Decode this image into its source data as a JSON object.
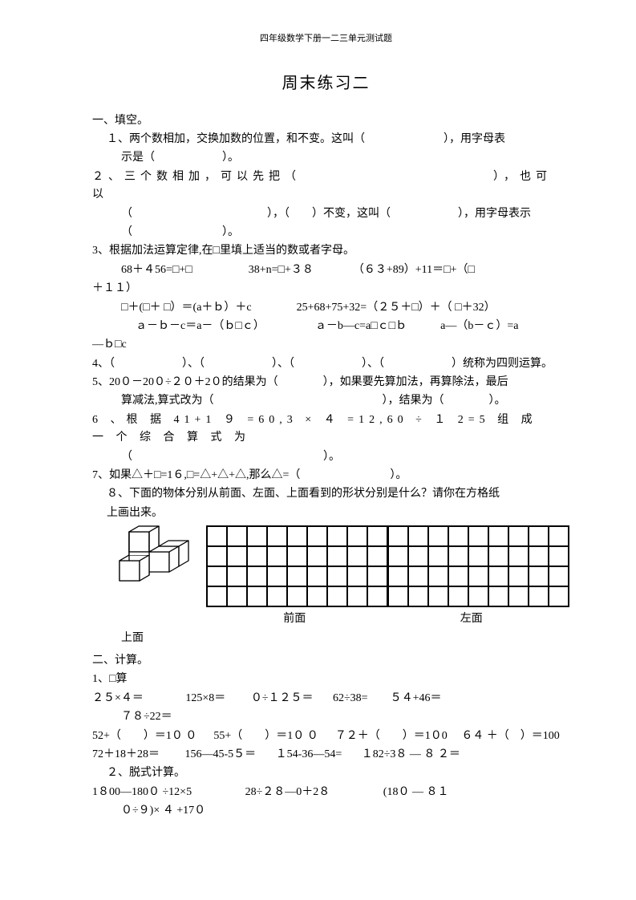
{
  "header": "四年级数学下册一二三单元测试题",
  "title": "周末练习二",
  "s1": {
    "head": "一、填空。",
    "q1a": "１、两个数相加，交换加数的位置，和不变。这叫（　　　　　　　），用字母表",
    "q1b": "示是（　　　　　　）。",
    "q2a": "２、三个数相加，可以先把（　　　　　　　　　　　　），也可以",
    "q2b": "（　　　　　　　　　　　　），（　　）不变，这叫（　　　　　　），用字母表示",
    "q2c": "（　　　　　　　　）。",
    "q3a": "3、根据加法运算定律,在□里填上适当的数或者字母。",
    "q3b": "68＋４56=□+□　　　　　38+n=□+３８　　　　（６３+89）+11＝□+（□",
    "q3c": "＋１１）",
    "q3d": "□＋(□＋ □）＝(a＋ｂ）＋c　　　　25+68+75+32=（２５＋□）＋（ □＋32）",
    "q3e": "ａ－ｂ－c＝a－（ｂ□ｃ）　　　　　ａ－b―c=a□ｃ□ｂ　　　a―（b－ｃ）=a",
    "q3f": "―ｂ□c",
    "q4": "4、（　　　　　　）、（　　　　　　）、（　　　　　　）、（　　　　　　）统称为四则运算。",
    "q5a": "5、20０－20０÷２０＋2０的结果为（　　　　），如果要先算加法，再算除法，最后",
    "q5b": "算减法,算式改为（　　　　　　　　　　　　　　　），结果为（　　　　）。",
    "q6a": "6 、根 据 41+1 ９ =60,3 × ４ =12,60 ÷ １ 2=5 组 成 一 个 综 合 算 式 为",
    "q6b": "（　　　　　　　　　　　　　　　　　）。",
    "q7": "7、如果△＋□=1６,□=△+△+△,那么△=（　　　　　　　　）。",
    "q8a": "８、下面的物体分别从前面、左面、上面看到的形状分别是什么？请你在方格纸",
    "q8b": "上画出来。",
    "gridLabelFront": "前面",
    "gridLabelLeft": "左面",
    "q8c": "上面"
  },
  "s2": {
    "head": "二、计算。",
    "q1head": "1、□算",
    "r1a": "２５×４＝",
    "r1b": "125×8＝",
    "r1c": "０÷１２５＝",
    "r1d": "62÷38=",
    "r1e": "５４+46＝",
    "r1f": "７８÷22＝",
    "r2a": "52+（　　）＝1０ ０",
    "r2b": "55+（　　）＝1０ ０",
    "r2c": "７２＋（　　）＝1０0",
    "r2d": "６４ ＋（　）＝100",
    "r3a": "72＋18＋28＝",
    "r3b": "156―45-5５＝",
    "r3c": "１54-36―54=",
    "r3d": "１82÷3８ ― ８ ２＝",
    "q2head": "２、脱式计算。",
    "e1": "1８00―180０ ÷12×5",
    "e2": "28÷２８―0＋2８",
    "e3": "(18０ ― ８１",
    "e3b": "０÷９)× ４ +17０"
  },
  "style": {
    "gridRows": 4,
    "gridCols": 9,
    "cellSize": 25,
    "pageBg": "#ffffff",
    "textColor": "#000000"
  }
}
